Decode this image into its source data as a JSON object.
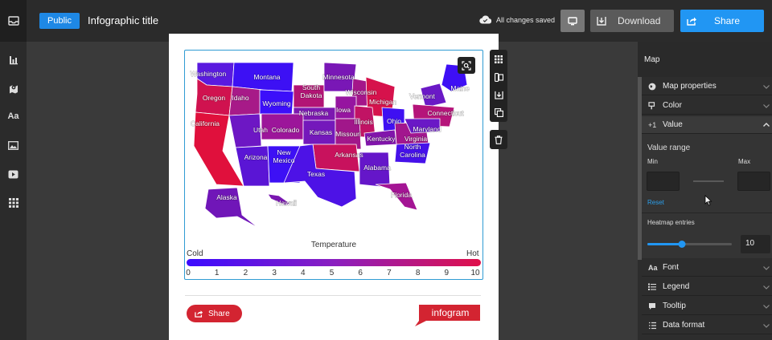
{
  "header": {
    "visibility_badge": "Public",
    "title": "Infographic title",
    "save_status": "All changes saved",
    "download_label": "Download",
    "share_label": "Share"
  },
  "sidebar": {
    "items": [
      {
        "icon": "dashboard-icon"
      },
      {
        "icon": "chart-icon"
      },
      {
        "icon": "map-icon"
      },
      {
        "icon": "text-icon",
        "label": "Aa"
      },
      {
        "icon": "image-icon"
      },
      {
        "icon": "video-icon"
      },
      {
        "icon": "apps-icon"
      }
    ]
  },
  "map": {
    "states": [
      {
        "name": "Washington",
        "color": "#5a1adf"
      },
      {
        "name": "Montana",
        "color": "#3d10f4"
      },
      {
        "name": "Oregon",
        "color": "#d0124f"
      },
      {
        "name": "Idaho",
        "color": "#a71a88"
      },
      {
        "name": "Wyoming",
        "color": "#3c0ffa"
      },
      {
        "name": "South Dakota",
        "color": "#b21475"
      },
      {
        "name": "Minnesota",
        "color": "#7917b6"
      },
      {
        "name": "Wisconsin",
        "color": "#a4168a"
      },
      {
        "name": "Michigan",
        "color": "#d6124c"
      },
      {
        "name": "Vermont",
        "color": "#6a19c6"
      },
      {
        "name": "Maine",
        "color": "#3e0ff5"
      },
      {
        "name": "California",
        "color": "#e0103c"
      },
      {
        "name": "Nebraska",
        "color": "#7c18b0"
      },
      {
        "name": "Iowa",
        "color": "#9615a0"
      },
      {
        "name": "Illinois",
        "color": "#c11364"
      },
      {
        "name": "Ohio",
        "color": "#3f10f2"
      },
      {
        "name": "Connecticut",
        "color": "#b5147a"
      },
      {
        "name": "Utah",
        "color": "#6d17c4"
      },
      {
        "name": "Colorado",
        "color": "#9c159a"
      },
      {
        "name": "Kansas",
        "color": "#7418bb"
      },
      {
        "name": "Missouri",
        "color": "#a1178a"
      },
      {
        "name": "Kentucky",
        "color": "#8115ab"
      },
      {
        "name": "Virginia",
        "color": "#a2168e"
      },
      {
        "name": "Maryland",
        "color": "#6a18c6"
      },
      {
        "name": "Arizona",
        "color": "#5a15d5"
      },
      {
        "name": "New Mexico",
        "color": "#3d10f5"
      },
      {
        "name": "Arkansas",
        "color": "#c8125d"
      },
      {
        "name": "North Carolina",
        "color": "#4611ea"
      },
      {
        "name": "Texas",
        "color": "#4d12e6"
      },
      {
        "name": "Alabama",
        "color": "#6516c9"
      },
      {
        "name": "Florida",
        "color": "#a41594"
      },
      {
        "name": "Alaska",
        "color": "#7016b8"
      },
      {
        "name": "Hawaii",
        "color": "#7a17b1"
      }
    ]
  },
  "legend": {
    "title": "Temperature",
    "min_label": "Cold",
    "max_label": "Hot",
    "ticks": [
      "0",
      "1",
      "2",
      "3",
      "4",
      "5",
      "6",
      "7",
      "8",
      "9",
      "10"
    ],
    "gradient": [
      "#3b0bff",
      "#8a1fc0",
      "#e0104a"
    ]
  },
  "footer": {
    "share_label": "Share",
    "brand": "infogram"
  },
  "panel": {
    "title": "Map",
    "sections": [
      {
        "label": "Map properties",
        "icon": "globe-icon"
      },
      {
        "label": "Color",
        "icon": "paint-bucket-icon"
      },
      {
        "label": "Value",
        "icon": "plus-one-icon"
      },
      {
        "label": "Font",
        "icon": "font-icon"
      },
      {
        "label": "Legend",
        "icon": "legend-icon"
      },
      {
        "label": "Tooltip",
        "icon": "tooltip-icon"
      },
      {
        "label": "Data format",
        "icon": "list-icon"
      }
    ],
    "value_range": {
      "title": "Value range",
      "min_label": "Min",
      "max_label": "Max",
      "min_value": "",
      "max_value": "",
      "reset_label": "Reset"
    },
    "heatmap": {
      "label": "Heatmap entries",
      "value": "10",
      "slider_fraction": 0.41
    }
  }
}
